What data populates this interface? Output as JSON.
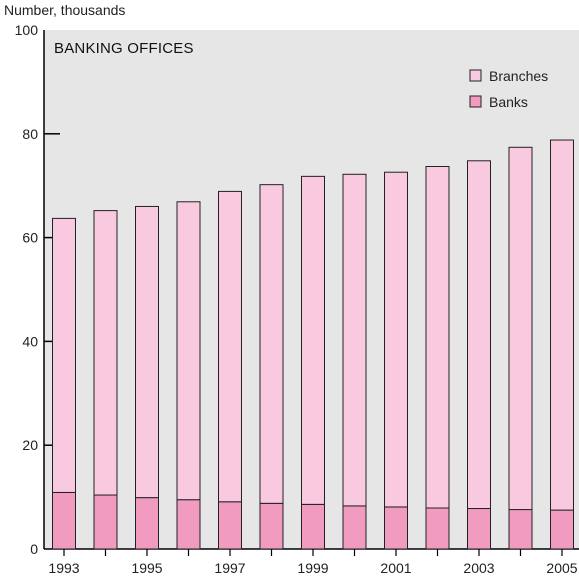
{
  "chart_data": {
    "type": "bar",
    "stacked": true,
    "title": "BANKING OFFICES",
    "ylabel": "Number, thousands",
    "xlabel": "",
    "ylim": [
      0,
      100
    ],
    "yticks": [
      0,
      20,
      40,
      60,
      80,
      100
    ],
    "categories": [
      "1993",
      "1994",
      "1995",
      "1996",
      "1997",
      "1998",
      "1999",
      "2000",
      "2001",
      "2002",
      "2003",
      "2004",
      "2005"
    ],
    "x_tick_labels": [
      "1993",
      "",
      "1995",
      "",
      "1997",
      "",
      "1999",
      "",
      "2001",
      "",
      "2003",
      "",
      "2005"
    ],
    "series": [
      {
        "name": "Banks",
        "color": "#f29bc1",
        "values": [
          10.9,
          10.4,
          9.9,
          9.5,
          9.1,
          8.8,
          8.6,
          8.3,
          8.1,
          7.9,
          7.8,
          7.6,
          7.5
        ]
      },
      {
        "name": "Branches",
        "color": "#f9c9df",
        "values": [
          52.8,
          54.8,
          56.1,
          57.4,
          59.8,
          61.4,
          63.2,
          63.9,
          64.5,
          65.8,
          67.0,
          69.8,
          71.3
        ]
      }
    ],
    "legend": {
      "placement": "top-right",
      "order": [
        "Branches",
        "Banks"
      ]
    },
    "plot_background": "#e6e6e6",
    "grid": false
  }
}
